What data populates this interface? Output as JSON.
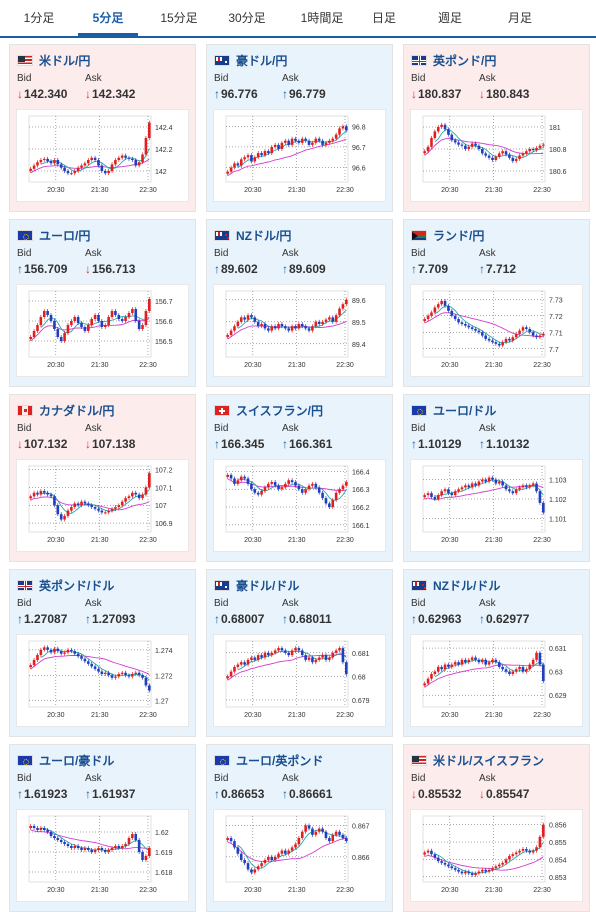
{
  "tabs": [
    {
      "label": "1分足",
      "active": false
    },
    {
      "label": "5分足",
      "active": true
    },
    {
      "label": "15分足",
      "active": false
    },
    {
      "label": "30分足",
      "active": false
    },
    {
      "label": "1時間足",
      "active": false
    },
    {
      "label": "日足",
      "active": false
    },
    {
      "label": "週足",
      "active": false
    },
    {
      "label": "月足",
      "active": false
    }
  ],
  "bid_label": "Bid",
  "ask_label": "Ask",
  "colors": {
    "up_arrow": "#1a5ea8",
    "down_arrow": "#d9372d",
    "candle_up": "#e02020",
    "candle_down": "#1f3fbf",
    "ma_short": "#2ca8a8",
    "ma_long": "#d23cd2",
    "card_down_bg": "#fcecec",
    "card_up_bg": "#e8f3fb"
  },
  "cards": [
    {
      "name": "米ドル/円",
      "flag": "us",
      "direction": "down",
      "bid": "142.340",
      "ask": "142.342"
    },
    {
      "name": "豪ドル/円",
      "flag": "au",
      "direction": "up",
      "bid": "96.776",
      "ask": "96.779"
    },
    {
      "name": "英ポンド/円",
      "flag": "gb",
      "direction": "down",
      "bid": "180.837",
      "ask": "180.843"
    },
    {
      "name": "ユーロ/円",
      "flag": "eu",
      "direction": "up",
      "bid": "156.709",
      "ask": "156.713",
      "ask_direction": "down"
    },
    {
      "name": "NZドル/円",
      "flag": "nz",
      "direction": "up",
      "bid": "89.602",
      "ask": "89.609"
    },
    {
      "name": "ランド/円",
      "flag": "za",
      "direction": "up",
      "bid": "7.709",
      "ask": "7.712"
    },
    {
      "name": "カナダドル/円",
      "flag": "ca",
      "direction": "down",
      "bid": "107.132",
      "ask": "107.138"
    },
    {
      "name": "スイスフラン/円",
      "flag": "ch",
      "direction": "up",
      "bid": "166.345",
      "ask": "166.361"
    },
    {
      "name": "ユーロ/ドル",
      "flag": "eu",
      "direction": "up",
      "bid": "1.10129",
      "ask": "1.10132"
    },
    {
      "name": "英ポンド/ドル",
      "flag": "gb",
      "direction": "up",
      "bid": "1.27087",
      "ask": "1.27093"
    },
    {
      "name": "豪ドル/ドル",
      "flag": "au",
      "direction": "up",
      "bid": "0.68007",
      "ask": "0.68011"
    },
    {
      "name": "NZドル/ドル",
      "flag": "nz",
      "direction": "up",
      "bid": "0.62963",
      "ask": "0.62977"
    },
    {
      "name": "ユーロ/豪ドル",
      "flag": "eu",
      "direction": "up",
      "bid": "1.61923",
      "ask": "1.61937"
    },
    {
      "name": "ユーロ/英ポンド",
      "flag": "eu",
      "direction": "up",
      "bid": "0.86653",
      "ask": "0.86661"
    },
    {
      "name": "米ドル/スイスフラン",
      "flag": "us",
      "direction": "down",
      "bid": "0.85532",
      "ask": "0.85547"
    }
  ],
  "chart_data": [
    {
      "type": "candlestick",
      "pair": "米ドル/円",
      "x_ticks": [
        "20:30",
        "21:30",
        "22:30"
      ],
      "y_ticks": [
        "142.4",
        "142.2",
        "142"
      ],
      "ylim": [
        141.9,
        142.5
      ],
      "series": [
        {
          "values": [
            142.02,
            142.05,
            142.08,
            142.1,
            142.11,
            142.09,
            142.07,
            142.1,
            142.06,
            142.03,
            142.0,
            141.98,
            141.98,
            142.0,
            142.03,
            142.05,
            142.07,
            142.1,
            142.12,
            142.1,
            142.05,
            142.0,
            141.98,
            142.0,
            142.06,
            142.1,
            142.12,
            142.14,
            142.12,
            142.11,
            142.1,
            142.05,
            142.08,
            142.15,
            142.3,
            142.44
          ]
        }
      ]
    },
    {
      "type": "candlestick",
      "pair": "豪ドル/円",
      "x_ticks": [
        "20:30",
        "21:30",
        "22:30"
      ],
      "y_ticks": [
        "96.8",
        "96.7",
        "96.6"
      ],
      "ylim": [
        96.53,
        96.85
      ],
      "series": [
        {
          "values": [
            96.58,
            96.6,
            96.62,
            96.61,
            96.64,
            96.65,
            96.66,
            96.63,
            96.65,
            96.67,
            96.66,
            96.68,
            96.67,
            96.7,
            96.71,
            96.69,
            96.72,
            96.73,
            96.71,
            96.74,
            96.73,
            96.72,
            96.74,
            96.73,
            96.71,
            96.72,
            96.74,
            96.73,
            96.71,
            96.72,
            96.73,
            96.74,
            96.76,
            96.79,
            96.8,
            96.78
          ]
        }
      ]
    },
    {
      "type": "candlestick",
      "pair": "英ポンド/円",
      "x_ticks": [
        "20:30",
        "21:30",
        "22:30"
      ],
      "y_ticks": [
        "181",
        "180.8",
        "180.6"
      ],
      "ylim": [
        180.5,
        181.1
      ],
      "series": [
        {
          "values": [
            180.78,
            180.82,
            180.9,
            180.96,
            181.0,
            181.02,
            180.98,
            180.93,
            180.88,
            180.86,
            180.84,
            180.83,
            180.8,
            180.82,
            180.85,
            180.83,
            180.8,
            180.76,
            180.74,
            180.72,
            180.7,
            180.73,
            180.76,
            180.78,
            180.75,
            180.72,
            180.69,
            180.71,
            180.74,
            180.76,
            180.78,
            180.8,
            180.79,
            180.81,
            180.83,
            180.84
          ]
        }
      ]
    },
    {
      "type": "candlestick",
      "pair": "ユーロ/円",
      "x_ticks": [
        "20:30",
        "21:30",
        "22:30"
      ],
      "y_ticks": [
        "156.7",
        "156.6",
        "156.5"
      ],
      "ylim": [
        156.42,
        156.75
      ],
      "series": [
        {
          "values": [
            156.52,
            156.55,
            156.58,
            156.62,
            156.65,
            156.63,
            156.6,
            156.56,
            156.52,
            156.5,
            156.54,
            156.58,
            156.6,
            156.62,
            156.59,
            156.57,
            156.55,
            156.58,
            156.61,
            156.63,
            156.6,
            156.57,
            156.58,
            156.62,
            156.65,
            156.63,
            156.61,
            156.6,
            156.62,
            156.64,
            156.66,
            156.6,
            156.56,
            156.58,
            156.65,
            156.71
          ]
        }
      ]
    },
    {
      "type": "candlestick",
      "pair": "NZドル/円",
      "x_ticks": [
        "20:30",
        "21:30",
        "22:30"
      ],
      "y_ticks": [
        "89.6",
        "89.5",
        "89.4"
      ],
      "ylim": [
        89.34,
        89.64
      ],
      "series": [
        {
          "values": [
            89.44,
            89.46,
            89.48,
            89.5,
            89.52,
            89.51,
            89.53,
            89.52,
            89.5,
            89.48,
            89.49,
            89.47,
            89.46,
            89.48,
            89.47,
            89.49,
            89.48,
            89.47,
            89.46,
            89.48,
            89.47,
            89.49,
            89.48,
            89.47,
            89.46,
            89.48,
            89.5,
            89.49,
            89.5,
            89.51,
            89.52,
            89.5,
            89.53,
            89.56,
            89.58,
            89.6
          ]
        }
      ]
    },
    {
      "type": "candlestick",
      "pair": "ランド/円",
      "x_ticks": [
        "20:30",
        "21:30",
        "22:30"
      ],
      "y_ticks": [
        "7.73",
        "7.72",
        "7.71",
        "7.7"
      ],
      "ylim": [
        7.695,
        7.735
      ],
      "series": [
        {
          "values": [
            7.718,
            7.72,
            7.722,
            7.725,
            7.727,
            7.729,
            7.726,
            7.723,
            7.72,
            7.718,
            7.716,
            7.715,
            7.714,
            7.713,
            7.712,
            7.711,
            7.71,
            7.708,
            7.706,
            7.705,
            7.704,
            7.703,
            7.702,
            7.704,
            7.706,
            7.705,
            7.707,
            7.709,
            7.711,
            7.713,
            7.712,
            7.71,
            7.708,
            7.707,
            7.708,
            7.709
          ]
        }
      ]
    },
    {
      "type": "candlestick",
      "pair": "カナダドル/円",
      "x_ticks": [
        "20:30",
        "21:30",
        "22:30"
      ],
      "y_ticks": [
        "107.2",
        "107.1",
        "107",
        "106.9"
      ],
      "ylim": [
        106.85,
        107.22
      ],
      "series": [
        {
          "values": [
            107.05,
            107.07,
            107.06,
            107.08,
            107.07,
            107.06,
            107.05,
            107.0,
            106.95,
            106.92,
            106.94,
            106.97,
            106.99,
            107.01,
            107.0,
            107.02,
            107.01,
            107.0,
            106.99,
            106.98,
            106.97,
            106.96,
            106.96,
            106.97,
            106.98,
            106.99,
            107.0,
            107.02,
            107.04,
            107.05,
            107.07,
            107.06,
            107.04,
            107.06,
            107.1,
            107.18
          ]
        }
      ]
    },
    {
      "type": "candlestick",
      "pair": "スイスフラン/円",
      "x_ticks": [
        "20:30",
        "21:30",
        "22:30"
      ],
      "y_ticks": [
        "166.4",
        "166.3",
        "166.2",
        "166.1"
      ],
      "ylim": [
        166.06,
        166.43
      ],
      "series": [
        {
          "values": [
            166.38,
            166.36,
            166.33,
            166.35,
            166.37,
            166.36,
            166.33,
            166.3,
            166.28,
            166.27,
            166.29,
            166.31,
            166.33,
            166.34,
            166.32,
            166.3,
            166.31,
            166.33,
            166.35,
            166.34,
            166.32,
            166.3,
            166.28,
            166.3,
            166.32,
            166.33,
            166.31,
            166.28,
            166.25,
            166.22,
            166.2,
            166.24,
            166.28,
            166.3,
            166.32,
            166.34
          ]
        }
      ]
    },
    {
      "type": "candlestick",
      "pair": "ユーロ/ドル",
      "x_ticks": [
        "20:30",
        "21:30",
        "22:30"
      ],
      "y_ticks": [
        "1.103",
        "1.102",
        "1.101"
      ],
      "ylim": [
        1.1003,
        1.1037
      ],
      "series": [
        {
          "values": [
            1.1022,
            1.1023,
            1.1021,
            1.102,
            1.1022,
            1.1024,
            1.1025,
            1.1023,
            1.1022,
            1.1024,
            1.1025,
            1.1026,
            1.1027,
            1.1026,
            1.1028,
            1.1027,
            1.1029,
            1.103,
            1.1029,
            1.1031,
            1.103,
            1.1028,
            1.1029,
            1.1027,
            1.1025,
            1.1024,
            1.1023,
            1.1025,
            1.1026,
            1.1027,
            1.1026,
            1.1027,
            1.1028,
            1.1024,
            1.1018,
            1.1013
          ]
        }
      ]
    },
    {
      "type": "candlestick",
      "pair": "英ポンド/ドル",
      "x_ticks": [
        "20:30",
        "21:30",
        "22:30"
      ],
      "y_ticks": [
        "1.274",
        "1.272",
        "1.27"
      ],
      "ylim": [
        1.2695,
        1.2747
      ],
      "series": [
        {
          "values": [
            1.2728,
            1.2732,
            1.2736,
            1.274,
            1.2742,
            1.274,
            1.2738,
            1.2741,
            1.2739,
            1.2737,
            1.2738,
            1.274,
            1.2739,
            1.2737,
            1.2735,
            1.2733,
            1.2731,
            1.2729,
            1.2727,
            1.2725,
            1.2723,
            1.2721,
            1.2722,
            1.272,
            1.2718,
            1.2719,
            1.2721,
            1.2722,
            1.272,
            1.2719,
            1.2721,
            1.2722,
            1.272,
            1.2718,
            1.2712,
            1.2708
          ]
        }
      ]
    },
    {
      "type": "candlestick",
      "pair": "豪ドル/ドル",
      "x_ticks": [
        "20:30",
        "21:30",
        "22:30"
      ],
      "y_ticks": [
        "0.681",
        "0.68",
        "0.679"
      ],
      "ylim": [
        0.6787,
        0.6815
      ],
      "series": [
        {
          "values": [
            0.68,
            0.6802,
            0.6804,
            0.6805,
            0.6806,
            0.6805,
            0.6807,
            0.6808,
            0.6807,
            0.6809,
            0.6808,
            0.681,
            0.6809,
            0.681,
            0.6811,
            0.6812,
            0.6811,
            0.681,
            0.6809,
            0.6811,
            0.6812,
            0.6811,
            0.6809,
            0.6807,
            0.6808,
            0.6806,
            0.6807,
            0.6808,
            0.6809,
            0.6807,
            0.6808,
            0.681,
            0.6811,
            0.6812,
            0.6806,
            0.6801
          ]
        }
      ]
    },
    {
      "type": "candlestick",
      "pair": "NZドル/ドル",
      "x_ticks": [
        "20:30",
        "21:30",
        "22:30"
      ],
      "y_ticks": [
        "0.631",
        "0.63",
        "0.629"
      ],
      "ylim": [
        0.6285,
        0.6313
      ],
      "series": [
        {
          "values": [
            0.6295,
            0.6297,
            0.6299,
            0.63,
            0.6302,
            0.6301,
            0.6303,
            0.6302,
            0.6303,
            0.6304,
            0.6303,
            0.6305,
            0.6304,
            0.6305,
            0.6306,
            0.6305,
            0.6304,
            0.6305,
            0.6303,
            0.6304,
            0.6305,
            0.6304,
            0.6302,
            0.6301,
            0.63,
            0.6299,
            0.63,
            0.6301,
            0.6302,
            0.63,
            0.6301,
            0.6303,
            0.6305,
            0.6308,
            0.6303,
            0.6296
          ]
        }
      ]
    },
    {
      "type": "candlestick",
      "pair": "ユーロ/豪ドル",
      "x_ticks": [
        "20:30",
        "21:30",
        "22:30"
      ],
      "y_ticks": [
        "1.62",
        "1.619",
        "1.618"
      ],
      "ylim": [
        1.6175,
        1.6208
      ],
      "series": [
        {
          "values": [
            1.6203,
            1.6202,
            1.6201,
            1.6202,
            1.6201,
            1.62,
            1.6198,
            1.6197,
            1.6196,
            1.6195,
            1.6194,
            1.6193,
            1.6192,
            1.6193,
            1.6192,
            1.6191,
            1.6192,
            1.6191,
            1.619,
            1.6191,
            1.6192,
            1.6191,
            1.619,
            1.6191,
            1.6192,
            1.6193,
            1.6192,
            1.6193,
            1.6194,
            1.6197,
            1.6199,
            1.6196,
            1.619,
            1.6186,
            1.6188,
            1.6192
          ]
        }
      ]
    },
    {
      "type": "candlestick",
      "pair": "ユーロ/英ポンド",
      "x_ticks": [
        "20:30",
        "21:30",
        "22:30"
      ],
      "y_ticks": [
        "0.867",
        "0.866"
      ],
      "ylim": [
        0.8652,
        0.8673
      ],
      "series": [
        {
          "values": [
            0.8666,
            0.8665,
            0.8663,
            0.8661,
            0.8659,
            0.8658,
            0.8656,
            0.8655,
            0.8656,
            0.8657,
            0.8658,
            0.8659,
            0.866,
            0.8659,
            0.866,
            0.8661,
            0.8662,
            0.8661,
            0.8662,
            0.8663,
            0.8664,
            0.8666,
            0.8668,
            0.867,
            0.8669,
            0.8667,
            0.8668,
            0.8669,
            0.8668,
            0.8666,
            0.8665,
            0.8667,
            0.8668,
            0.8667,
            0.8666,
            0.8665
          ]
        }
      ]
    },
    {
      "type": "candlestick",
      "pair": "米ドル/スイスフラン",
      "x_ticks": [
        "20:30",
        "21:30",
        "22:30"
      ],
      "y_ticks": [
        "0.856",
        "0.855",
        "0.854",
        "0.853"
      ],
      "ylim": [
        0.8527,
        0.8565
      ],
      "series": [
        {
          "values": [
            0.8544,
            0.8545,
            0.8543,
            0.8541,
            0.8539,
            0.8538,
            0.8537,
            0.8536,
            0.8535,
            0.8534,
            0.8533,
            0.8532,
            0.8533,
            0.8532,
            0.8531,
            0.8532,
            0.8533,
            0.8534,
            0.8533,
            0.8534,
            0.8535,
            0.8536,
            0.8537,
            0.8538,
            0.854,
            0.8542,
            0.8543,
            0.8544,
            0.8545,
            0.8546,
            0.8545,
            0.8544,
            0.8545,
            0.8547,
            0.8553,
            0.856
          ]
        }
      ]
    }
  ]
}
